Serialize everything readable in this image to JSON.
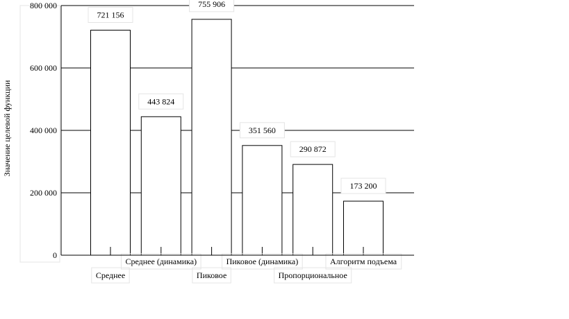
{
  "chart_data": {
    "type": "bar",
    "title": "",
    "xlabel": "",
    "ylabel": "Значение целевой функции",
    "ylim": [
      0,
      800000
    ],
    "yticks": [
      0,
      200000,
      400000,
      600000,
      800000
    ],
    "ytick_labels": [
      "0",
      "200 000",
      "400 000",
      "600 000",
      "800 000"
    ],
    "grid": "horizontal",
    "legend": "none",
    "categories": [
      "Среднее",
      "Среднее (динамика)",
      "Пиковое",
      "Пиковое (динамика)",
      "Пропорциональное",
      "Алгоритм подъема"
    ],
    "values": [
      721156,
      443824,
      755906,
      351560,
      290872,
      173200
    ],
    "value_labels": [
      "721 156",
      "443 824",
      "755 906",
      "351 560",
      "290 872",
      "173 200"
    ],
    "colors": {
      "bar_fill": "#ffffff",
      "bar_stroke": "#000000",
      "grid": "#000000",
      "label_box": "#e4e4e4"
    }
  }
}
